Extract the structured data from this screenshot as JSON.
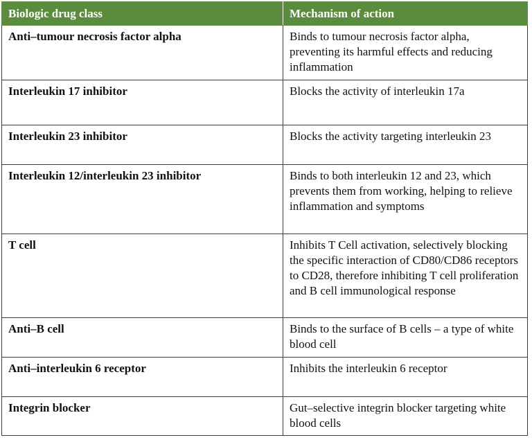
{
  "table": {
    "header": [
      "Biologic drug class",
      "Mechanism of action"
    ],
    "rows": [
      [
        "Anti–tumour necrosis factor alpha",
        "Binds to tumour necrosis factor alpha, preventing its harmful effects and reducing inflammation"
      ],
      [
        "Interleukin 17 inhibitor",
        "Blocks the activity of interleukin 17a"
      ],
      [
        "Interleukin 23 inhibitor",
        "Blocks the activity targeting interleukin 23"
      ],
      [
        "Interleukin 12/interleukin 23 inhibitor",
        "Binds to both interleukin 12 and 23, which prevents them from working, helping to relieve inflammation and symptoms"
      ],
      [
        "T cell",
        "Inhibits T Cell activation, selectively blocking the specific interaction of CD80/CD86 receptors to CD28, therefore inhibiting T cell proliferation and B cell immunological response"
      ],
      [
        "Anti–B cell",
        "Binds to the surface of B cells – a type of white blood cell"
      ],
      [
        "Anti–interleukin 6 receptor",
        "Inhibits the interleukin 6 receptor"
      ],
      [
        "Integrin blocker",
        "Gut–selective integrin blocker targeting white blood cells"
      ]
    ]
  }
}
